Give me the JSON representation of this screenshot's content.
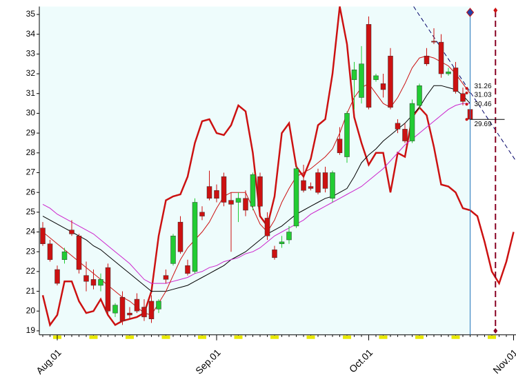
{
  "chart_data": {
    "type": "candlestick",
    "categories": [
      null,
      null,
      "Aug.01",
      null,
      null,
      null,
      null,
      null,
      null,
      null,
      null,
      null,
      null,
      null,
      null,
      null,
      null,
      null,
      null,
      null,
      null,
      null,
      null,
      null,
      "Sep.01",
      null,
      null,
      null,
      null,
      null,
      null,
      null,
      null,
      null,
      null,
      null,
      null,
      null,
      null,
      null,
      null,
      null,
      null,
      null,
      null,
      "Oct.01",
      null,
      null,
      null,
      null,
      null,
      null,
      null,
      null,
      null,
      null,
      null,
      null,
      null,
      null,
      null,
      null,
      null,
      null,
      null,
      "Nov.01"
    ],
    "open": [
      24.2,
      23.4,
      22.1,
      22.6,
      24.1,
      23.8,
      21.8,
      21.6,
      21.3,
      22.2,
      19.9,
      20.7,
      19.9,
      20.6,
      20.2,
      20.5,
      20.1,
      21.8,
      22.4,
      24.5,
      22.3,
      22.0,
      25.0,
      26.3,
      26.1,
      26.8,
      25.6,
      25.5,
      25.7,
      25.3,
      26.8,
      24.7,
      23.1,
      23.4,
      23.6,
      24.3,
      26.6,
      26.3,
      27.0,
      27.0,
      25.7,
      28.7,
      27.8,
      31.7,
      30.8,
      34.5,
      31.7,
      31.5,
      32.9,
      29.5,
      29.2,
      28.6,
      30.4,
      32.9,
      33.65,
      33.6,
      32.0,
      32.3,
      31.0,
      30.2,
      null,
      null,
      null,
      null,
      null,
      null
    ],
    "high": [
      24.5,
      23.6,
      22.3,
      23.2,
      24.6,
      23.9,
      22.5,
      22.1,
      21.9,
      22.4,
      20.4,
      21.0,
      20.2,
      20.9,
      20.6,
      20.8,
      20.6,
      22.1,
      23.9,
      24.8,
      22.6,
      25.7,
      25.3,
      27.1,
      26.4,
      27.0,
      26.0,
      26.0,
      26.1,
      27.0,
      27.0,
      25.0,
      23.3,
      23.8,
      24.3,
      27.3,
      27.4,
      26.5,
      27.2,
      27.3,
      27.1,
      29.3,
      30.1,
      32.6,
      33.4,
      34.9,
      32.0,
      32.0,
      33.3,
      29.7,
      29.5,
      30.7,
      31.5,
      33.3,
      34.3,
      34.0,
      32.3,
      32.6,
      31.3,
      31.2,
      null,
      null,
      null,
      null,
      null,
      null
    ],
    "low": [
      23.3,
      22.5,
      21.3,
      22.4,
      23.8,
      21.9,
      21.0,
      21.1,
      21.0,
      19.8,
      19.7,
      19.3,
      19.6,
      19.9,
      19.5,
      19.4,
      19.9,
      21.4,
      22.3,
      22.9,
      21.8,
      21.9,
      24.6,
      25.6,
      25.5,
      25.3,
      23.0,
      24.5,
      24.8,
      25.1,
      25.0,
      23.6,
      22.6,
      23.2,
      23.4,
      24.2,
      26.0,
      26.1,
      25.9,
      26.0,
      25.5,
      27.9,
      27.5,
      30.2,
      30.5,
      30.2,
      31.6,
      30.8,
      30.2,
      29.0,
      28.5,
      28.5,
      30.2,
      32.4,
      33.5,
      31.8,
      31.9,
      31.0,
      30.4,
      29.6,
      null,
      null,
      null,
      null,
      null,
      null
    ],
    "close": [
      23.4,
      22.6,
      21.4,
      23.0,
      23.9,
      22.1,
      21.5,
      21.3,
      21.6,
      20.0,
      20.3,
      19.5,
      19.8,
      20.0,
      19.7,
      19.6,
      20.5,
      21.6,
      23.8,
      23.0,
      21.9,
      25.5,
      24.8,
      25.7,
      25.7,
      25.5,
      25.4,
      25.7,
      25.1,
      26.9,
      25.3,
      23.8,
      22.7,
      23.5,
      24.0,
      27.2,
      26.1,
      26.2,
      26.0,
      26.2,
      27.0,
      28.0,
      30.0,
      32.2,
      32.5,
      30.3,
      31.9,
      31.2,
      30.3,
      29.2,
      28.6,
      30.5,
      31.4,
      32.5,
      33.6,
      32.0,
      32.1,
      31.1,
      30.6,
      29.7,
      null,
      null,
      null,
      null,
      null,
      null
    ],
    "up_color": "#22cc33",
    "down_color": "#cc1111",
    "moving_averages": [
      {
        "color": "#000000",
        "values": [
          24.8,
          24.6,
          24.4,
          24.2,
          24.0,
          23.8,
          23.6,
          23.3,
          23.1,
          22.8,
          22.5,
          22.2,
          21.9,
          21.6,
          21.3,
          21.0,
          21.0,
          21.0,
          21.1,
          21.2,
          21.3,
          21.5,
          21.7,
          21.9,
          22.1,
          22.3,
          22.6,
          22.8,
          23.0,
          23.3,
          23.6,
          23.9,
          24.1,
          24.3,
          24.6,
          24.9,
          25.1,
          25.3,
          25.5,
          25.7,
          25.8,
          26.0,
          26.2,
          26.8,
          27.5,
          27.9,
          28.2,
          28.6,
          28.9,
          29.2,
          29.5,
          29.9,
          30.3,
          30.9,
          31.4,
          31.4,
          31.3,
          31.2,
          30.9,
          30.5,
          null,
          null,
          null,
          null,
          null,
          null
        ]
      },
      {
        "color": "#cc22cc",
        "values": [
          25.4,
          25.2,
          24.9,
          24.7,
          24.5,
          24.3,
          24.1,
          23.9,
          23.6,
          23.3,
          23.0,
          22.7,
          22.4,
          22.0,
          21.6,
          21.4,
          21.4,
          21.4,
          21.5,
          21.6,
          21.7,
          21.9,
          22.0,
          22.2,
          22.3,
          22.5,
          22.6,
          22.7,
          22.9,
          23.0,
          23.2,
          23.5,
          23.8,
          24.0,
          24.2,
          24.4,
          24.6,
          24.9,
          25.1,
          25.3,
          25.5,
          25.7,
          25.9,
          26.1,
          26.3,
          26.6,
          26.9,
          27.2,
          27.6,
          28.0,
          28.4,
          28.7,
          29.0,
          29.3,
          29.6,
          29.9,
          30.2,
          30.4,
          30.5,
          30.5,
          null,
          null,
          null,
          null,
          null,
          null
        ]
      },
      {
        "color": "#cc1111",
        "values": [
          24.0,
          23.7,
          23.4,
          23.1,
          22.8,
          22.5,
          22.2,
          21.9,
          21.6,
          21.3,
          21.0,
          20.7,
          20.5,
          20.2,
          19.9,
          19.8,
          20.4,
          21.0,
          21.8,
          22.6,
          23.2,
          23.6,
          24.0,
          24.5,
          25.2,
          25.8,
          26.0,
          26.0,
          26.0,
          25.2,
          24.4,
          24.0,
          24.6,
          25.5,
          26.2,
          26.8,
          27.0,
          27.2,
          27.5,
          27.8,
          28.2,
          29.0,
          30.0,
          30.8,
          31.3,
          31.5,
          31.0,
          30.5,
          30.3,
          30.8,
          31.5,
          32.3,
          32.8,
          32.9,
          32.8,
          32.6,
          32.4,
          32.0,
          31.5,
          31.0,
          null,
          null,
          null,
          null,
          null,
          null
        ]
      }
    ],
    "oscillator": {
      "color": "#cc1111",
      "values": [
        20.8,
        19.3,
        19.8,
        21.5,
        21.5,
        20.5,
        19.9,
        20.0,
        20.6,
        19.8,
        19.3,
        19.5,
        19.6,
        19.7,
        19.9,
        21.0,
        23.8,
        25.6,
        25.8,
        25.9,
        26.8,
        28.5,
        29.6,
        29.7,
        29.0,
        28.9,
        29.4,
        30.4,
        30.1,
        28.0,
        24.8,
        24.3,
        25.8,
        29.0,
        29.5,
        27.3,
        26.8,
        27.7,
        29.4,
        29.7,
        32.0,
        35.4,
        33.5,
        29.8,
        28.5,
        27.4,
        28.0,
        28.0,
        26.0,
        28.0,
        27.8,
        29.8,
        30.3,
        29.9,
        28.3,
        26.4,
        26.3,
        26.0,
        25.2,
        25.1,
        24.8,
        23.5,
        22.0,
        21.4,
        22.5,
        24.0
      ]
    },
    "trendline": {
      "x": [
        51.2,
        65.3
      ],
      "y": [
        35.4,
        27.6
      ],
      "color": "#000066"
    },
    "price_labels": [
      31.26,
      31.03,
      30.46,
      29.69
    ],
    "current_index": 59,
    "projection_index": 62.5,
    "ylim": [
      18.8,
      35.4
    ],
    "yticks": [
      19,
      20,
      21,
      22,
      23,
      24,
      25,
      26,
      27,
      28,
      29,
      30,
      31,
      32,
      33,
      34,
      35
    ]
  }
}
